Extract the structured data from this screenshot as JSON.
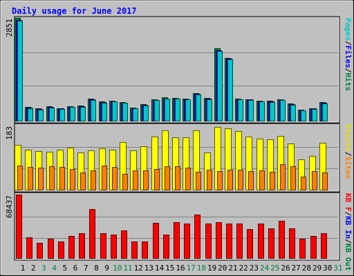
{
  "chart_data": {
    "type": "bar",
    "title": "Daily usage for June 2017",
    "categories": [
      "1",
      "2",
      "3",
      "4",
      "5",
      "6",
      "7",
      "8",
      "9",
      "10",
      "11",
      "12",
      "13",
      "14",
      "15",
      "16",
      "17",
      "18",
      "19",
      "20",
      "21",
      "22",
      "23",
      "24",
      "25",
      "26",
      "27",
      "28",
      "29",
      "30",
      "31"
    ],
    "weekend_days": [
      "3",
      "4",
      "10",
      "11",
      "17",
      "18",
      "24",
      "25",
      "31"
    ],
    "panels": [
      {
        "id": "hits",
        "max_label": "2851",
        "ylim": [
          0,
          2851
        ],
        "legend": [
          {
            "text": "Pages",
            "color": "#00c8c8"
          },
          {
            "text": "/",
            "color": "#000000"
          },
          {
            "text": "Files",
            "color": "#0000ff"
          },
          {
            "text": "/",
            "color": "#000000"
          },
          {
            "text": "Hits",
            "color": "#008040"
          }
        ],
        "series": [
          {
            "name": "Hits",
            "color": "#008040",
            "values": [
              2851,
              380,
              340,
              400,
              350,
              410,
              420,
              620,
              540,
              560,
              520,
              360,
              460,
              600,
              650,
              640,
              620,
              770,
              640,
              2000,
              1750,
              620,
              600,
              560,
              550,
              600,
              470,
              310,
              350,
              510,
              0
            ]
          },
          {
            "name": "Files",
            "color": "#0000ff",
            "values": [
              2800,
              360,
              325,
              375,
              335,
              385,
              400,
              590,
              515,
              540,
              500,
              345,
              440,
              580,
              620,
              620,
              600,
              740,
              610,
              1960,
              1720,
              600,
              585,
              545,
              535,
              580,
              450,
              295,
              335,
              490,
              0
            ]
          },
          {
            "name": "Pages",
            "color": "#00c8c8",
            "values": [
              2780,
              350,
              315,
              365,
              325,
              375,
              390,
              580,
              505,
              530,
              490,
              335,
              430,
              570,
              610,
              610,
              590,
              730,
              600,
              1940,
              1700,
              590,
              575,
              535,
              525,
              570,
              440,
              285,
              325,
              480,
              0
            ]
          }
        ]
      },
      {
        "id": "visits",
        "max_label": "183",
        "ylim": [
          0,
          183
        ],
        "legend": [
          {
            "text": "Visits",
            "color": "#e0e000"
          },
          {
            "text": "/",
            "color": "#000000"
          },
          {
            "text": "Sites",
            "color": "#ff8000"
          }
        ],
        "series": [
          {
            "name": "Visits",
            "color": "#ffff00",
            "values": [
              128,
              115,
              110,
              108,
              114,
              120,
              107,
              112,
              118,
              115,
              135,
              112,
              123,
              152,
              170,
              150,
              149,
              170,
              107,
              180,
              176,
              168,
              151,
              145,
              143,
              154,
              132,
              87,
              97,
              134,
              0
            ]
          },
          {
            "name": "Sites",
            "color": "#ff8000",
            "values": [
              69,
              64,
              63,
              66,
              64,
              59,
              50,
              55,
              68,
              64,
              46,
              55,
              56,
              59,
              66,
              66,
              62,
              52,
              58,
              54,
              57,
              58,
              53,
              55,
              51,
              73,
              67,
              38,
              54,
              49,
              0
            ]
          }
        ]
      },
      {
        "id": "kbytes",
        "max_label": "68437",
        "ylim": [
          0,
          68437
        ],
        "legend": [
          {
            "text": "KB F",
            "color": "#ff0000"
          },
          {
            "text": "/",
            "color": "#000000"
          },
          {
            "text": "KB In",
            "color": "#0000ff"
          },
          {
            "text": "/",
            "color": "#000000"
          },
          {
            "text": "KB Out",
            "color": "#008040"
          }
        ],
        "series": [
          {
            "name": "KB F",
            "color": "#ff0000",
            "values": [
              68437,
              22000,
              16500,
              21000,
              17500,
              24000,
              26500,
              52500,
              26500,
              25000,
              30000,
              17500,
              18000,
              38000,
              25500,
              39000,
              37000,
              47000,
              37000,
              39000,
              37000,
              37000,
              31000,
              37000,
              32000,
              40000,
              32000,
              21000,
              23500,
              26500,
              0
            ]
          }
        ]
      }
    ]
  }
}
